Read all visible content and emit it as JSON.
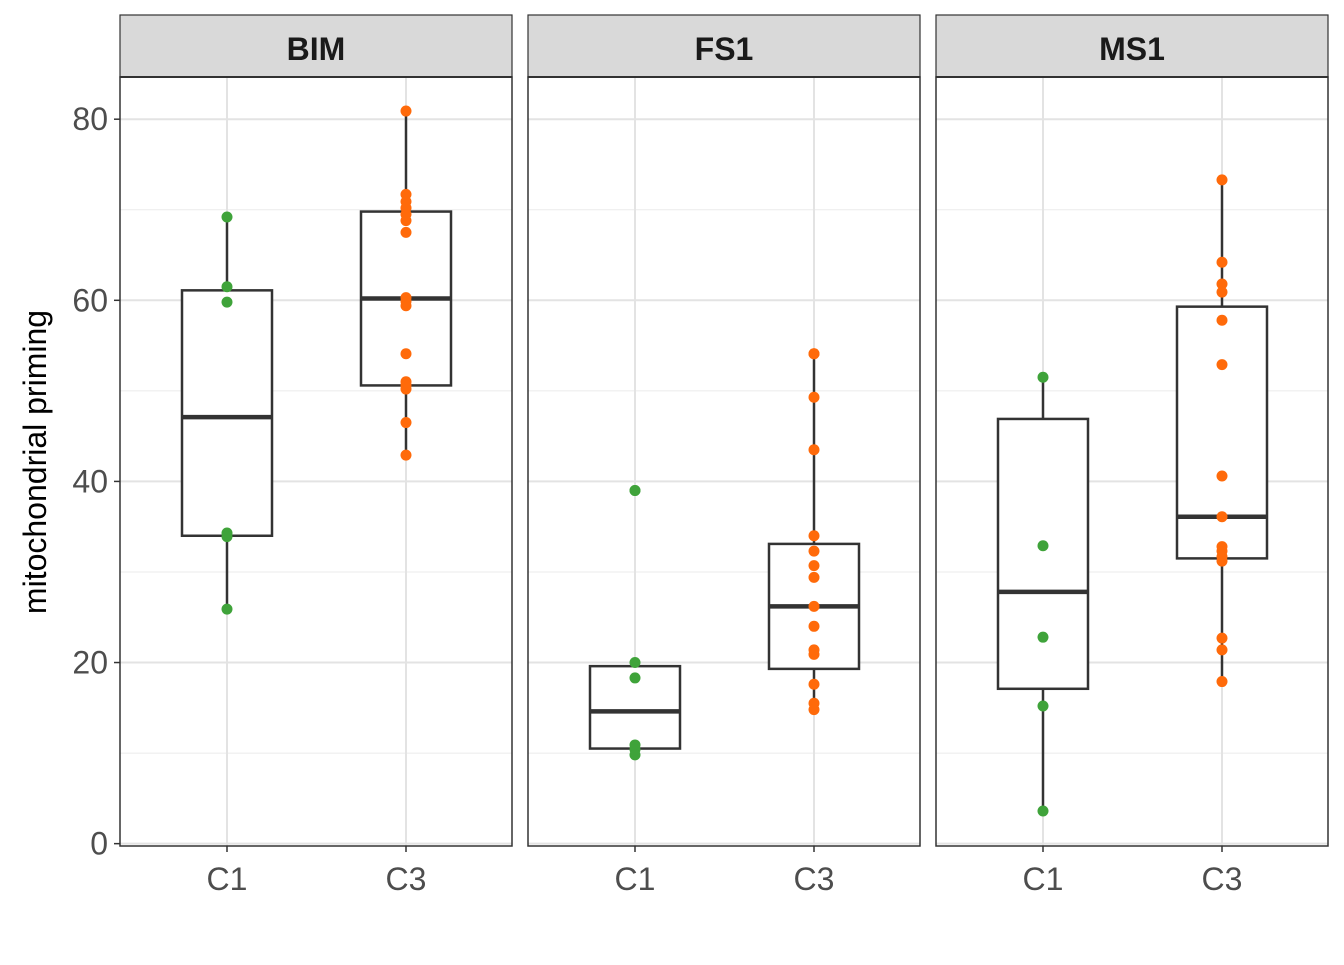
{
  "chart_data": {
    "type": "box",
    "ylabel": "mitochondrial priming",
    "xlabel": "",
    "ylim": [
      -0.26,
      84.66
    ],
    "yticks": [
      0,
      20,
      40,
      60,
      80
    ],
    "yticks_minor": [
      10,
      30,
      50,
      70
    ],
    "categories": [
      "C1",
      "C3"
    ],
    "colors": {
      "C1": "#3fa33a",
      "C3": "#ff6a0a"
    },
    "panels": [
      {
        "title": "BIM",
        "groups": [
          {
            "category": "C1",
            "box": {
              "lower": 25.8,
              "q1": 34.0,
              "median": 47.1,
              "q3": 61.1,
              "upper": 69.2
            },
            "points": [
              69.2,
              61.5,
              59.8,
              34.3,
              33.9,
              25.9
            ]
          },
          {
            "category": "C3",
            "box": {
              "lower": 42.9,
              "q1": 50.6,
              "median": 60.2,
              "q3": 69.8,
              "upper": 80.9
            },
            "points": [
              80.9,
              71.7,
              70.9,
              70.2,
              69.5,
              68.8,
              67.5,
              60.3,
              59.9,
              59.4,
              54.1,
              51.0,
              50.6,
              50.2,
              46.5,
              42.9
            ]
          }
        ]
      },
      {
        "title": "FS1",
        "groups": [
          {
            "category": "C1",
            "box": {
              "lower": 9.8,
              "q1": 10.5,
              "median": 14.6,
              "q3": 19.6,
              "upper": 20.0
            },
            "points": [
              39.0,
              39.0,
              20.0,
              18.3,
              10.9,
              10.4,
              9.8
            ]
          },
          {
            "category": "C3",
            "box": {
              "lower": 14.8,
              "q1": 19.3,
              "median": 26.2,
              "q3": 33.1,
              "upper": 54.1
            },
            "points": [
              54.1,
              54.1,
              49.3,
              43.5,
              34.0,
              32.3,
              30.7,
              29.4,
              26.2,
              24.0,
              21.4,
              20.9,
              17.6,
              15.5,
              14.8
            ]
          }
        ]
      },
      {
        "title": "MS1",
        "groups": [
          {
            "category": "C1",
            "box": {
              "lower": 3.6,
              "q1": 17.1,
              "median": 27.8,
              "q3": 46.9,
              "upper": 51.5
            },
            "points": [
              51.5,
              32.9,
              22.8,
              15.2,
              3.6
            ]
          },
          {
            "category": "C3",
            "box": {
              "lower": 17.9,
              "q1": 31.5,
              "median": 36.1,
              "q3": 59.3,
              "upper": 73.3
            },
            "points": [
              73.3,
              64.2,
              61.8,
              60.9,
              57.8,
              52.9,
              40.6,
              36.1,
              32.8,
              32.3,
              31.7,
              31.2,
              22.7,
              21.4,
              17.9
            ]
          }
        ]
      }
    ]
  }
}
